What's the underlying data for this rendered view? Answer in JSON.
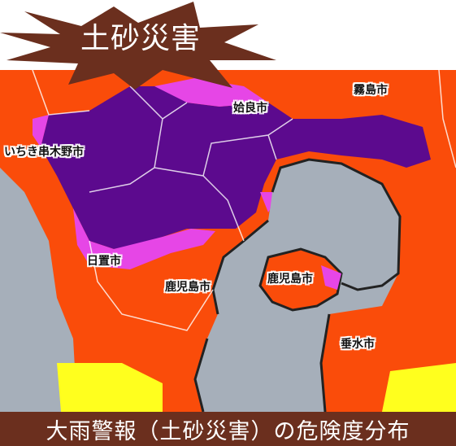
{
  "header": {
    "title": "土砂災害"
  },
  "map": {
    "cities": [
      {
        "id": "kirishima",
        "name": "霧島市"
      },
      {
        "id": "aira",
        "name": "姶良市"
      },
      {
        "id": "ichikikushikino",
        "name": "いちき串木野市"
      },
      {
        "id": "hioki",
        "name": "日置市"
      },
      {
        "id": "kagoshima-mainland",
        "name": "鹿児島市"
      },
      {
        "id": "kagoshima-sakurajima",
        "name": "鹿児島市"
      },
      {
        "id": "tarumizu",
        "name": "垂水市"
      }
    ],
    "colors": {
      "extreme": "#5c0a8e",
      "danger": "#e646e6",
      "warning": "#fa4c0a",
      "caution": "#ffff1e",
      "sea": "#a6afba",
      "border": "#222222"
    }
  },
  "caption": {
    "text": "大雨警報（土砂災害）の危険度分布"
  },
  "colors": {
    "burst_fill": "#6b2f1e",
    "caption_bg": "#6b2f1e"
  }
}
